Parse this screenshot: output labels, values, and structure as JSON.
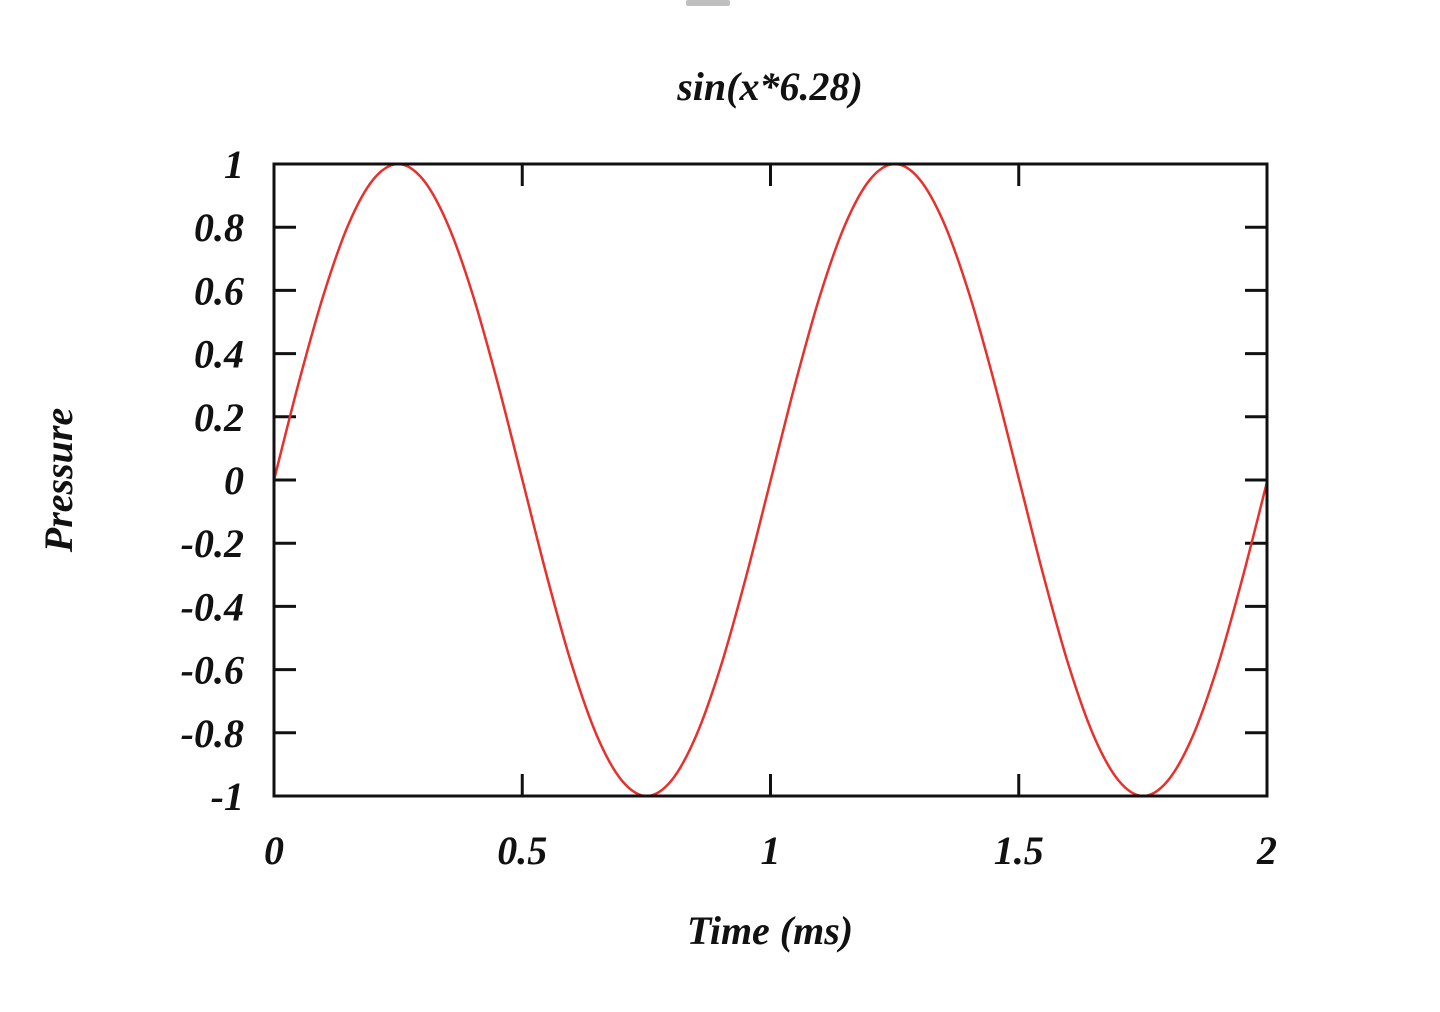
{
  "chart_data": {
    "type": "line",
    "title": "sin(x*6.28)",
    "xlabel": "Time (ms)",
    "ylabel": "Pressure",
    "xlim": [
      0,
      2
    ],
    "ylim": [
      -1,
      1
    ],
    "x_ticks": [
      0,
      0.5,
      1,
      1.5,
      2
    ],
    "x_tick_labels": [
      "0",
      "0.5",
      "1",
      "1.5",
      "2"
    ],
    "y_ticks": [
      1,
      0.8,
      0.6,
      0.4,
      0.2,
      0,
      -0.2,
      -0.4,
      -0.6,
      -0.8,
      -1
    ],
    "y_tick_labels": [
      "1",
      "0.8",
      "0.6",
      "0.4",
      "0.2",
      "0",
      "-0.2",
      "-0.4",
      "-0.6",
      "-0.8",
      "-1"
    ],
    "grid": false,
    "legend": "none",
    "series": [
      {
        "color": "#e8302c",
        "x": [
          0,
          0.05,
          0.1,
          0.15,
          0.2,
          0.25,
          0.3,
          0.35,
          0.4,
          0.45,
          0.5,
          0.55,
          0.6,
          0.65,
          0.7,
          0.75,
          0.8,
          0.85,
          0.9,
          0.95,
          1.0,
          1.05,
          1.1,
          1.15,
          1.2,
          1.25,
          1.3,
          1.35,
          1.4,
          1.45,
          1.5,
          1.55,
          1.6,
          1.65,
          1.7,
          1.75,
          1.8,
          1.85,
          1.9,
          1.95,
          2.0
        ],
        "y": [
          0,
          0.309,
          0.587,
          0.809,
          0.951,
          1.0,
          0.951,
          0.809,
          0.588,
          0.31,
          0.002,
          -0.307,
          -0.586,
          -0.808,
          -0.95,
          -1.0,
          -0.952,
          -0.81,
          -0.589,
          -0.311,
          -0.003,
          0.306,
          0.585,
          0.807,
          0.95,
          1.0,
          0.952,
          0.811,
          0.59,
          0.313,
          0.005,
          -0.304,
          -0.584,
          -0.806,
          -0.949,
          -1.0,
          -0.952,
          -0.812,
          -0.592,
          -0.314,
          -0.006
        ]
      }
    ]
  }
}
